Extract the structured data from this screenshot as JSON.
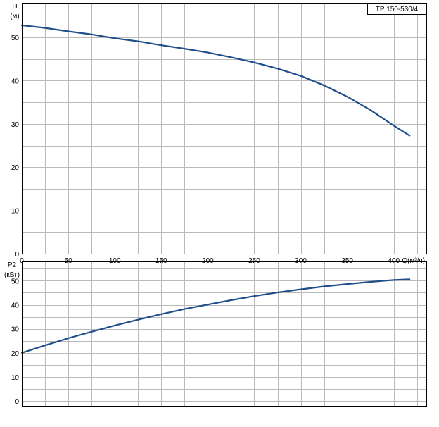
{
  "model_label": "TP 150-530/4",
  "colors": {
    "curve": "#1f4e8a",
    "grid": "#b9b9b9",
    "frame": "#000000"
  },
  "chart_data": [
    {
      "type": "line",
      "title": "",
      "ylabel_symbol": "H",
      "ylabel_unit": "(м)",
      "xlabel": "Q(м³/ч)",
      "xlim": [
        0,
        435
      ],
      "ylim": [
        0,
        58
      ],
      "x_ticks": [
        "0",
        "50",
        "100",
        "150",
        "200",
        "250",
        "300",
        "350",
        "400"
      ],
      "y_ticks": [
        "0",
        "10",
        "20",
        "30",
        "40",
        "50"
      ],
      "grid": true,
      "series": [
        {
          "x": [
            0,
            25,
            50,
            75,
            100,
            125,
            150,
            175,
            200,
            225,
            250,
            275,
            300,
            325,
            350,
            375,
            400,
            417
          ],
          "values": [
            52.8,
            52.2,
            51.4,
            50.7,
            49.8,
            49.1,
            48.2,
            47.4,
            46.5,
            45.4,
            44.2,
            42.8,
            41.1,
            38.9,
            36.3,
            33.2,
            29.6,
            27.3
          ]
        }
      ]
    },
    {
      "type": "line",
      "title": "",
      "ylabel_symbol": "P2",
      "ylabel_unit": "(кВт)",
      "xlabel": "",
      "xlim": [
        0,
        435
      ],
      "ylim": [
        -2,
        58
      ],
      "y_ticks": [
        "0",
        "10",
        "20",
        "30",
        "40",
        "50"
      ],
      "grid": true,
      "series": [
        {
          "x": [
            0,
            25,
            50,
            75,
            100,
            125,
            150,
            175,
            200,
            225,
            250,
            275,
            300,
            325,
            350,
            375,
            400,
            417
          ],
          "values": [
            20,
            23.1,
            26.1,
            28.8,
            31.4,
            33.8,
            36.1,
            38.2,
            40.1,
            41.9,
            43.6,
            45.1,
            46.4,
            47.6,
            48.6,
            49.5,
            50.3,
            50.6
          ]
        }
      ]
    }
  ]
}
